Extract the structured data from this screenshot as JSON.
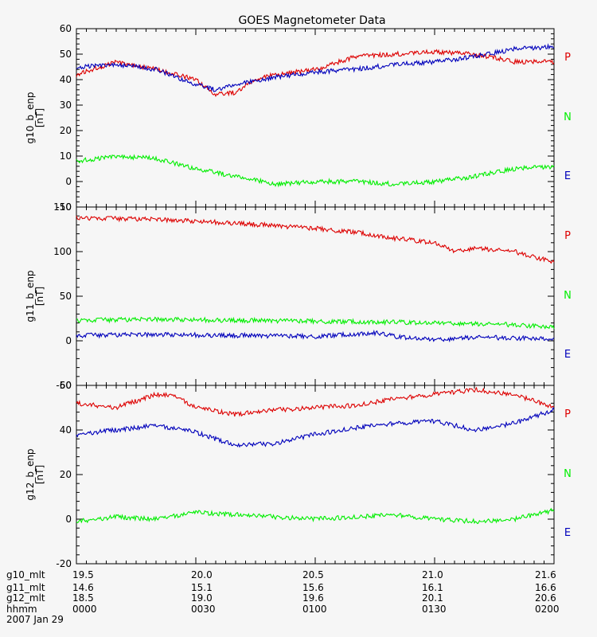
{
  "title": "GOES Magnetometer Data",
  "colors": {
    "P": "#dd0000",
    "N": "#00ee00",
    "E": "#0000bb",
    "axis": "#000000",
    "background": "#f6f6f6"
  },
  "chart_data": [
    {
      "type": "line",
      "ylabel": "g10_b_enp",
      "yunit": "[nT]",
      "ylim": [
        -10,
        60
      ],
      "yticks": [
        -10,
        0,
        10,
        20,
        30,
        40,
        50,
        60
      ],
      "series": [
        {
          "name": "P",
          "x": [
            0,
            10,
            20,
            30,
            35,
            40,
            45,
            50,
            60,
            70,
            80,
            90,
            100,
            110,
            120
          ],
          "y": [
            42,
            47,
            44,
            40,
            34,
            35,
            40,
            42,
            44,
            49,
            50,
            51,
            50,
            47,
            47
          ]
        },
        {
          "name": "N",
          "x": [
            0,
            10,
            20,
            30,
            40,
            50,
            60,
            70,
            80,
            90,
            100,
            110,
            120
          ],
          "y": [
            8,
            10,
            9,
            5,
            2,
            -1,
            0,
            0,
            -1,
            0,
            2,
            5,
            6
          ]
        },
        {
          "name": "E",
          "x": [
            0,
            10,
            20,
            30,
            35,
            40,
            50,
            60,
            70,
            80,
            90,
            100,
            110,
            120
          ],
          "y": [
            45,
            46,
            44,
            38,
            36,
            38,
            41,
            43,
            44,
            46,
            47,
            49,
            52,
            53
          ]
        }
      ]
    },
    {
      "type": "line",
      "ylabel": "g11_b_enp",
      "yunit": "[nT]",
      "ylim": [
        -50,
        150
      ],
      "yticks": [
        -50,
        0,
        50,
        100,
        150
      ],
      "series": [
        {
          "name": "P",
          "x": [
            0,
            10,
            20,
            30,
            40,
            50,
            60,
            70,
            80,
            90,
            95,
            100,
            110,
            120
          ],
          "y": [
            138,
            137,
            136,
            134,
            132,
            129,
            126,
            122,
            115,
            110,
            100,
            104,
            100,
            88
          ]
        },
        {
          "name": "N",
          "x": [
            0,
            20,
            40,
            60,
            80,
            100,
            110,
            120
          ],
          "y": [
            23,
            24,
            23,
            22,
            21,
            19,
            18,
            15
          ]
        },
        {
          "name": "E",
          "x": [
            0,
            20,
            40,
            60,
            75,
            80,
            90,
            100,
            110,
            120
          ],
          "y": [
            6,
            7,
            6,
            5,
            9,
            5,
            1,
            4,
            3,
            2
          ]
        }
      ]
    },
    {
      "type": "line",
      "ylabel": "g12_b_enp",
      "yunit": "[nT]",
      "ylim": [
        -20,
        60
      ],
      "yticks": [
        -20,
        0,
        20,
        40,
        60
      ],
      "series": [
        {
          "name": "P",
          "x": [
            0,
            10,
            20,
            25,
            30,
            40,
            50,
            60,
            70,
            80,
            90,
            100,
            110,
            120
          ],
          "y": [
            52,
            50,
            56,
            55,
            50,
            47,
            49,
            50,
            51,
            54,
            56,
            58,
            56,
            50
          ]
        },
        {
          "name": "N",
          "x": [
            0,
            10,
            20,
            30,
            40,
            50,
            60,
            70,
            80,
            90,
            100,
            110,
            120
          ],
          "y": [
            -1,
            1,
            0,
            3,
            2,
            1,
            0,
            1,
            2,
            0,
            -1,
            0,
            4
          ]
        },
        {
          "name": "E",
          "x": [
            0,
            10,
            20,
            30,
            40,
            50,
            60,
            70,
            80,
            90,
            100,
            110,
            120
          ],
          "y": [
            38,
            40,
            42,
            39,
            33,
            34,
            38,
            41,
            43,
            44,
            40,
            43,
            49
          ]
        }
      ]
    }
  ],
  "legend": [
    "P",
    "N",
    "E"
  ],
  "xaxis": {
    "xlim": [
      0,
      120
    ],
    "tick_positions": [
      0,
      30,
      60,
      90,
      120
    ],
    "rows": [
      {
        "label": "g10_mlt",
        "values": [
          "19.5",
          "20.0",
          "20.5",
          "21.0",
          "21.6"
        ]
      },
      {
        "label": "g11_mlt",
        "values": [
          "14.6",
          "15.1",
          "15.6",
          "16.1",
          "16.6"
        ]
      },
      {
        "label": "g12_mlt",
        "values": [
          "18.5",
          "19.0",
          "19.6",
          "20.1",
          "20.6"
        ]
      },
      {
        "label": "hhmm",
        "values": [
          "0000",
          "0030",
          "0100",
          "0130",
          "0200"
        ]
      }
    ],
    "date": "2007 Jan 29"
  }
}
